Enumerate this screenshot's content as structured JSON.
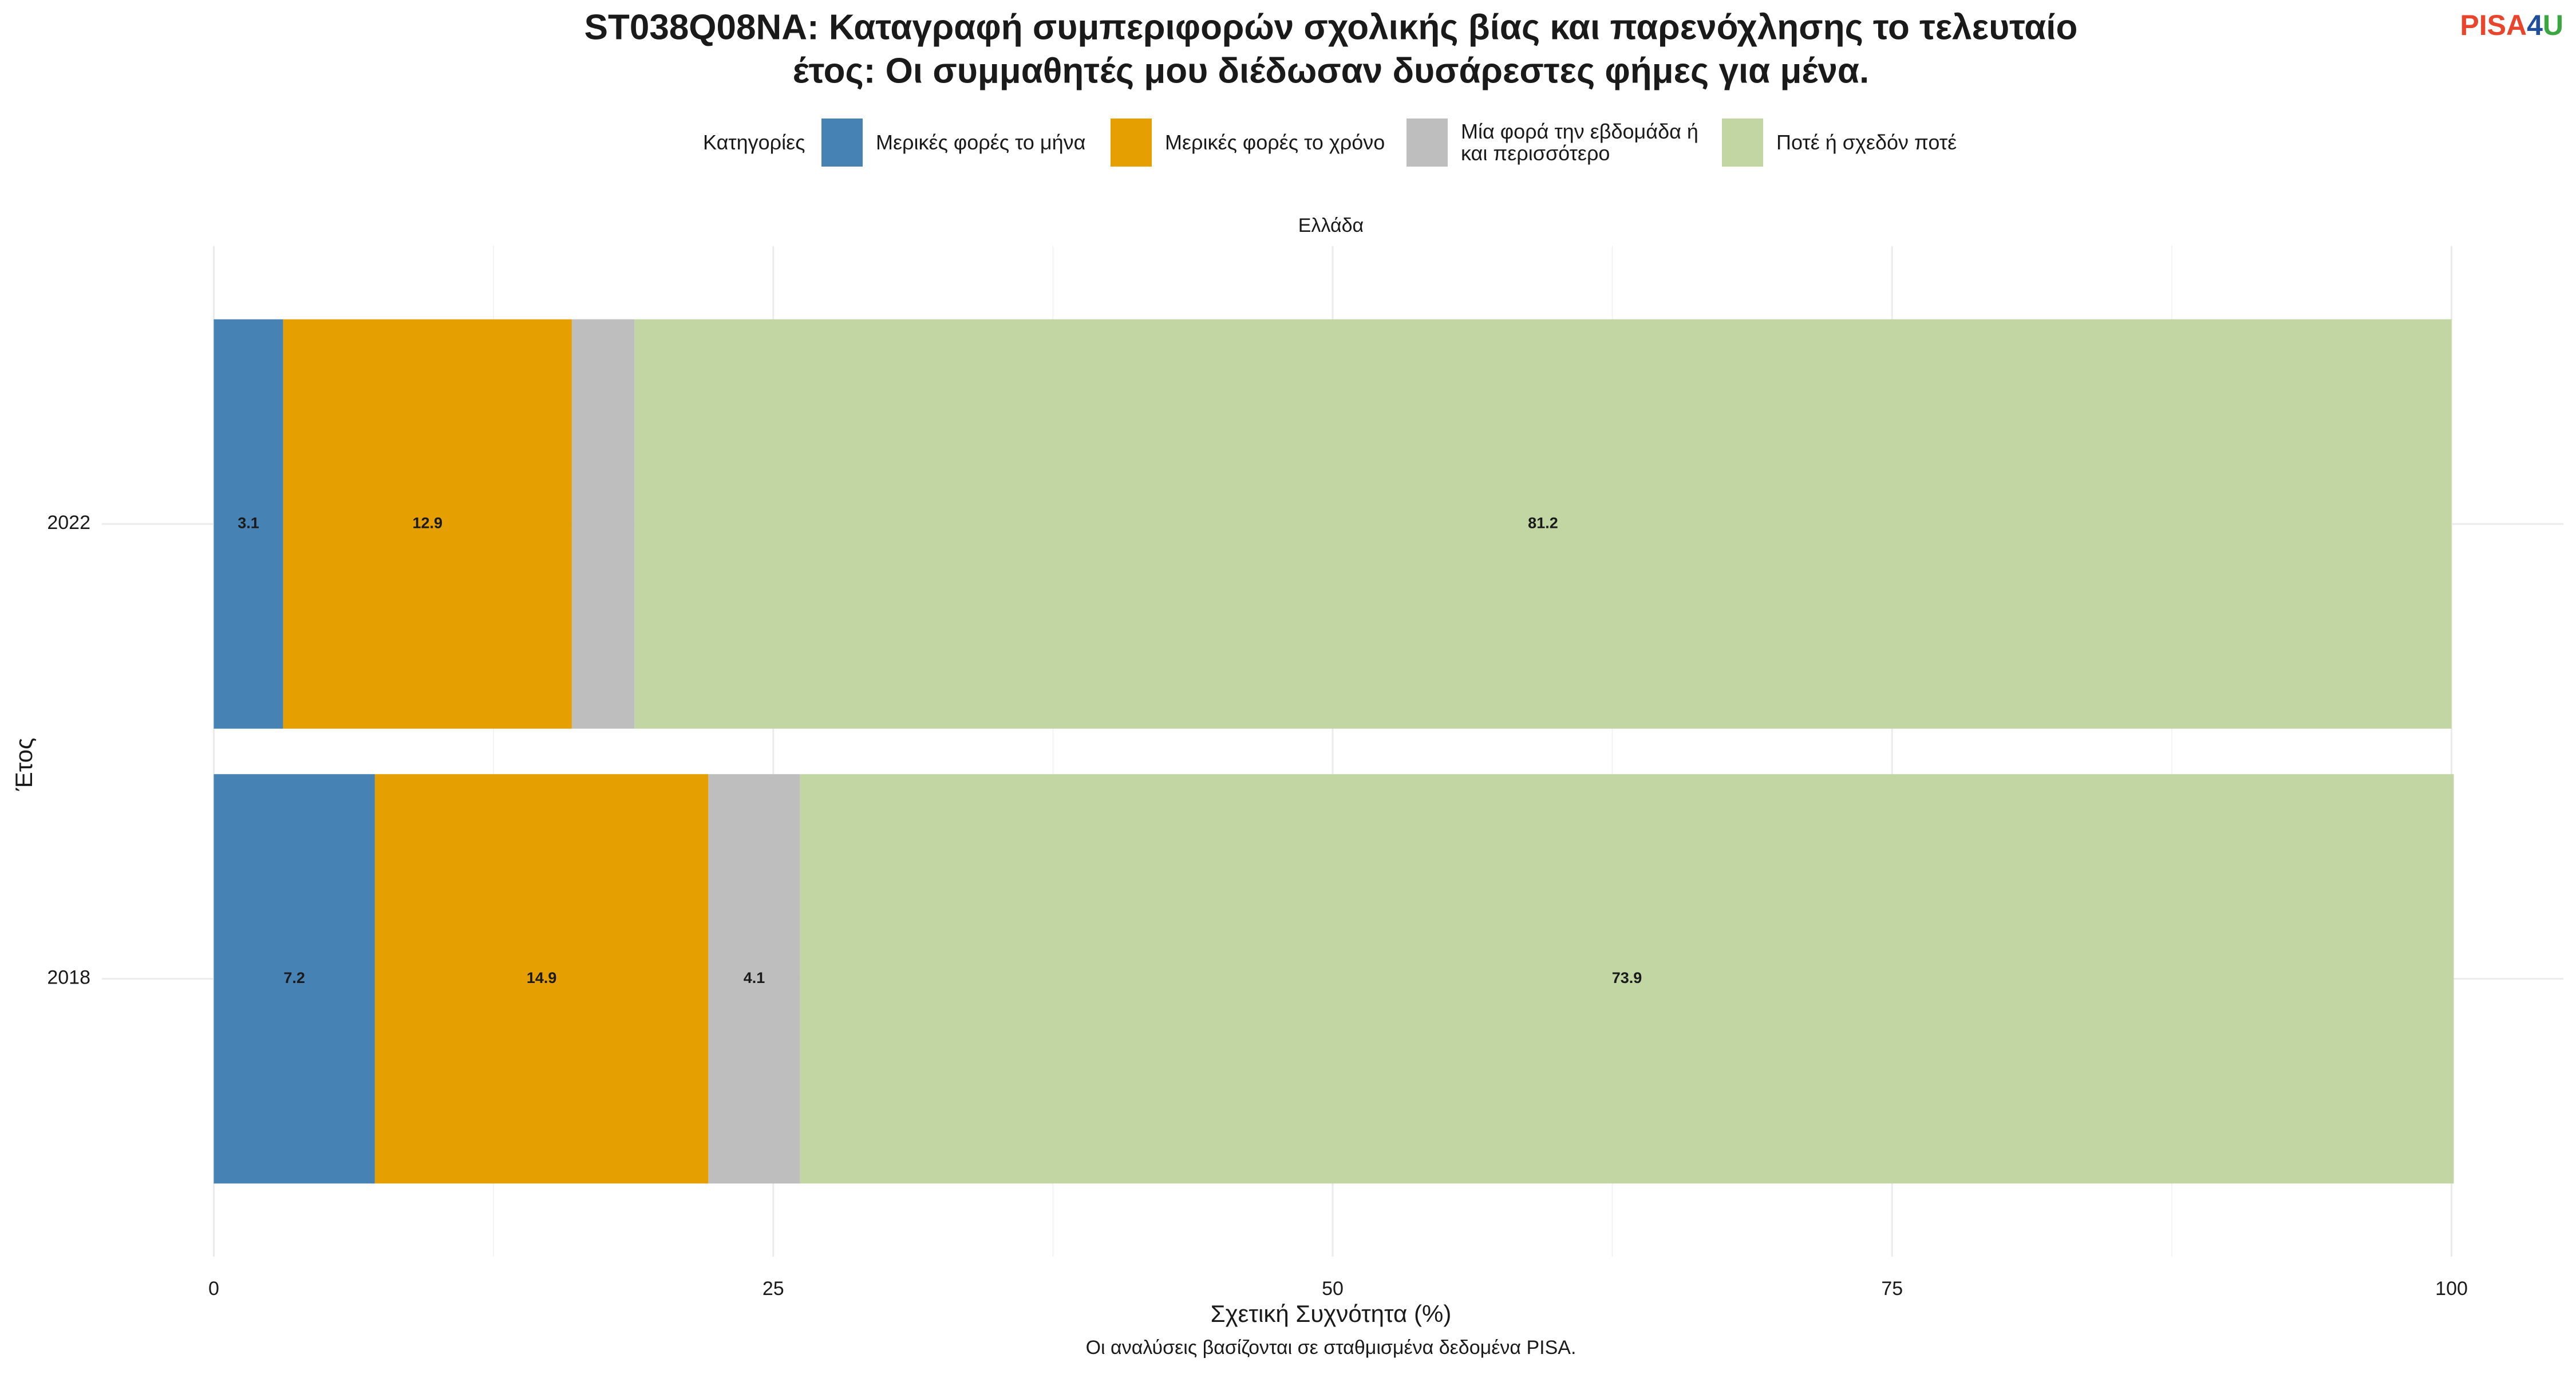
{
  "chart_data": {
    "type": "stacked-barh",
    "title": [
      "ST038Q08NA: Καταγραφή συμπεριφορών σχολικής βίας και παρενόχλησης το τελευταίο",
      "έτος: Οι συμμαθητές μου διέδωσαν δυσάρεστες φήμες για μένα."
    ],
    "logo": [
      "PISA",
      "4",
      "U"
    ],
    "facet": "Ελλάδα",
    "legend_title": "Κατηγορίες",
    "x_label": "Σχετική Συχνότητα (%)",
    "y_label": "Έτος",
    "caption": "Οι αναλύσεις βασίζονται σε σταθμισμένα δεδομένα PISA.",
    "categories": [
      "2022",
      "2018"
    ],
    "series": [
      {
        "name": "Μερικές φορές το μήνα",
        "color": "#4682b4",
        "values": [
          3.1,
          7.2
        ]
      },
      {
        "name": "Μερικές φορές το χρόνο",
        "color": "#e69f00",
        "values": [
          12.9,
          14.9
        ]
      },
      {
        "name": "Μία φορά την εβδομάδα ή και περισσότερο",
        "color": "#bebebe",
        "values": [
          2.8,
          4.1
        ],
        "value_labels": [
          null,
          "4.1"
        ]
      },
      {
        "name": "Ποτέ ή σχεδόν ποτέ",
        "color": "#c2d6a4",
        "values": [
          81.2,
          73.9
        ]
      }
    ],
    "xlim": [
      -5,
      105
    ],
    "xticks": [
      0,
      25,
      50,
      75,
      100
    ],
    "xminor": [
      12.5,
      37.5,
      62.5,
      87.5
    ],
    "grid": true
  }
}
